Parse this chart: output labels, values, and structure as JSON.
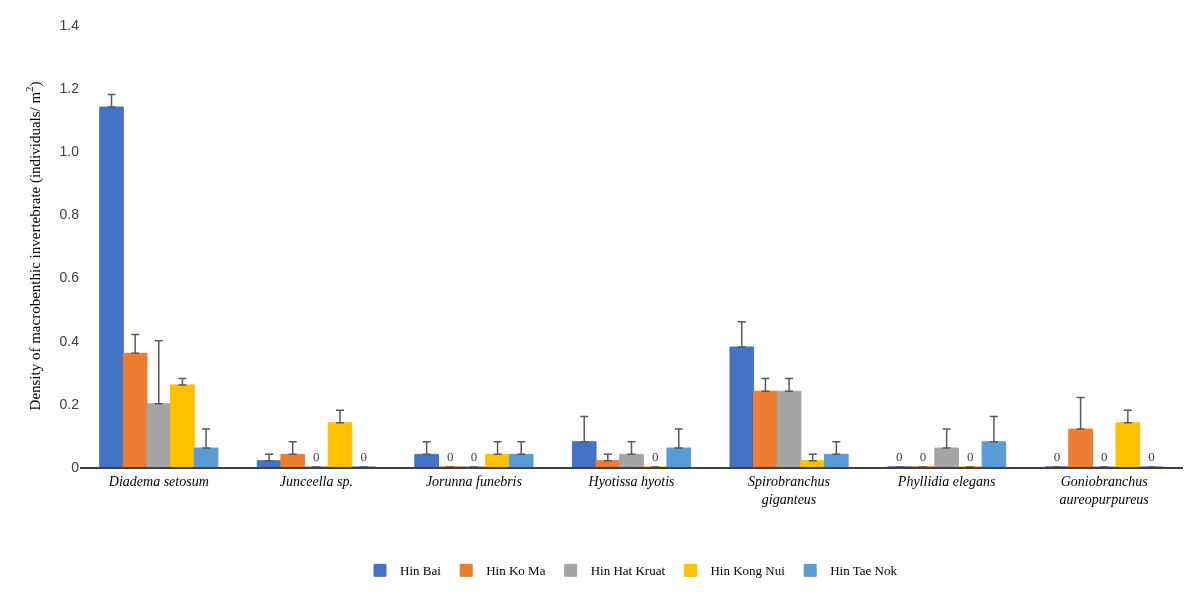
{
  "chart_data": {
    "type": "bar",
    "ylabel": "Density of macrobenthic invertebrate (individuals/ m$^{2}$)",
    "categories": [
      "Diadema setosum",
      "Junceella sp.",
      "Jorunna funebris",
      "Hyotissa hyotis",
      "Spirobranchus giganteus",
      "Phyllidia elegans",
      "Goniobranchus aureopurpureus"
    ],
    "ylim": [
      0,
      1.4
    ],
    "yticks": [
      0,
      {
        "value": 0.2,
        "label": "0.2"
      },
      {
        "value": 0.4,
        "label": "0.4"
      },
      {
        "value": 0.6,
        "label": "0.6"
      },
      {
        "value": 0.8,
        "label": "0.8"
      },
      {
        "value": 1.0,
        "label": "1.0"
      },
      {
        "value": 1.2,
        "label": "1.2"
      },
      {
        "value": 1.4,
        "label": "1.4"
      }
    ],
    "legend": "bottom",
    "series": [
      {
        "name": "Hin Bai",
        "color": "#4472c4",
        "values": [
          1.14,
          0.02,
          0.04,
          0.08,
          0.38,
          0,
          0
        ],
        "errors": [
          [
            1.14,
            1.18
          ],
          [
            0.02,
            0.04
          ],
          [
            0.04,
            0.08
          ],
          [
            0.08,
            0.16
          ],
          [
            0.38,
            0.46
          ],
          null,
          null
        ],
        "value_labels": [
          null,
          null,
          null,
          null,
          null,
          "0",
          "0"
        ]
      },
      {
        "name": "Hin Ko Ma",
        "color": "#ed7d31",
        "values": [
          0.36,
          0.04,
          0,
          0.02,
          0.24,
          0,
          0.12
        ],
        "errors": [
          [
            0.36,
            0.42
          ],
          [
            0.04,
            0.08
          ],
          null,
          [
            0.02,
            0.04
          ],
          [
            0.24,
            0.28
          ],
          null,
          [
            0.12,
            0.22
          ]
        ],
        "value_labels": [
          null,
          null,
          "0",
          null,
          null,
          "0",
          null
        ]
      },
      {
        "name": "Hin Hat Kruat",
        "color": "#a5a5a5",
        "values": [
          0.2,
          0,
          0,
          0.04,
          0.24,
          0.06,
          0
        ],
        "errors": [
          [
            0.2,
            0.4
          ],
          null,
          null,
          [
            0.04,
            0.08
          ],
          [
            0.24,
            0.28
          ],
          [
            0.06,
            0.12
          ],
          null
        ],
        "value_labels": [
          null,
          "0",
          "0",
          null,
          null,
          null,
          "0"
        ]
      },
      {
        "name": "Hin Kong Nui",
        "color": "#ffc000",
        "values": [
          0.26,
          0.14,
          0.04,
          0,
          0.02,
          0,
          0.14
        ],
        "errors": [
          [
            0.26,
            0.28
          ],
          [
            0.14,
            0.18
          ],
          [
            0.04,
            0.08
          ],
          null,
          [
            0.02,
            0.04
          ],
          null,
          [
            0.14,
            0.18
          ]
        ],
        "value_labels": [
          null,
          null,
          null,
          "0",
          null,
          "0",
          null
        ]
      },
      {
        "name": "Hin Tae Nok",
        "color": "#5b9bd5",
        "values": [
          0.06,
          0,
          0.04,
          0.06,
          0.04,
          0.08,
          0
        ],
        "errors": [
          [
            0.06,
            0.12
          ],
          null,
          [
            0.04,
            0.08
          ],
          [
            0.06,
            0.12
          ],
          [
            0.04,
            0.08
          ],
          [
            0.08,
            0.16
          ],
          null
        ],
        "value_labels": [
          null,
          "0",
          null,
          null,
          null,
          null,
          "0"
        ]
      }
    ]
  }
}
